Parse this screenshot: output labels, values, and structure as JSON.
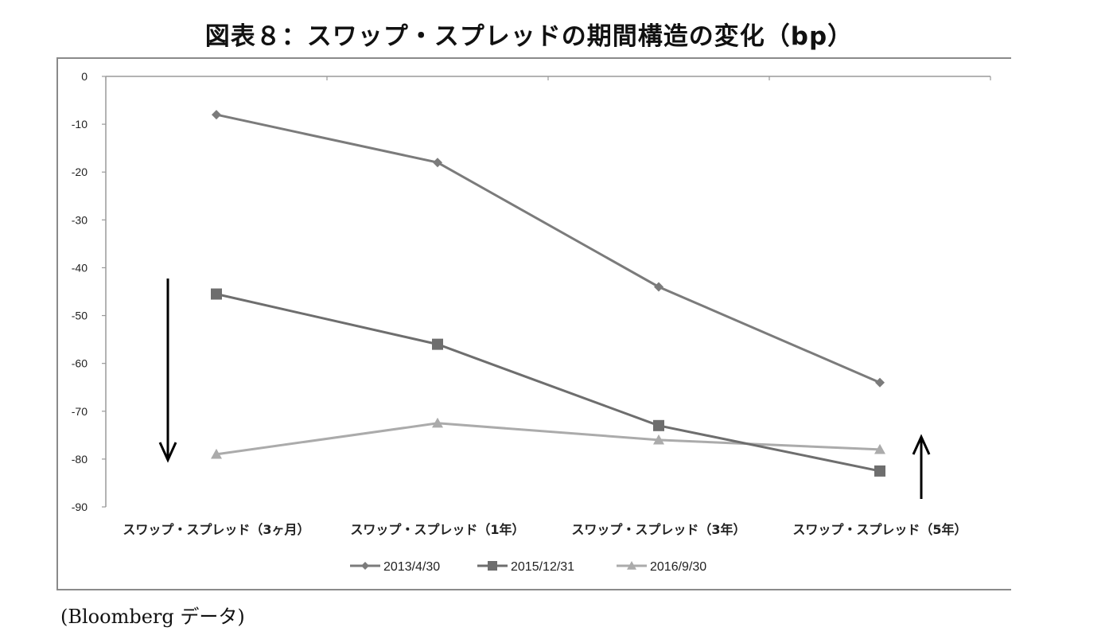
{
  "chart_data": {
    "type": "line",
    "title": "図表８：スワップ・スプレッドの期間構造の変化（bp）",
    "xlabel": "",
    "ylabel": "",
    "ylim": [
      -90,
      0
    ],
    "yticks": [
      0,
      -10,
      -20,
      -30,
      -40,
      -50,
      -60,
      -70,
      -80,
      -90
    ],
    "categories": [
      "スワップ・スプレッド（3ヶ月）",
      "スワップ・スプレッド（1年）",
      "スワップ・スプレッド（3年）",
      "スワップ・スプレッド（5年）"
    ],
    "series": [
      {
        "name": "2013/4/30",
        "values": [
          -8,
          -18,
          -44,
          -64
        ],
        "color": "#7b7b7b",
        "marker": "diamond"
      },
      {
        "name": "2015/12/31",
        "values": [
          -45.5,
          -56,
          -73,
          -82.5
        ],
        "color": "#6e6e6e",
        "marker": "square"
      },
      {
        "name": "2016/9/30",
        "values": [
          -79,
          -72.5,
          -76,
          -78
        ],
        "color": "#ababab",
        "marker": "triangle"
      }
    ],
    "grid": false,
    "legend_position": "bottom-center",
    "annotations": [
      {
        "type": "arrow",
        "direction": "down",
        "near": "スワップ・スプレッド（3ヶ月）"
      },
      {
        "type": "arrow",
        "direction": "up",
        "near": "スワップ・スプレッド（5年）"
      }
    ]
  },
  "source_note": "(Bloomberg データ)"
}
